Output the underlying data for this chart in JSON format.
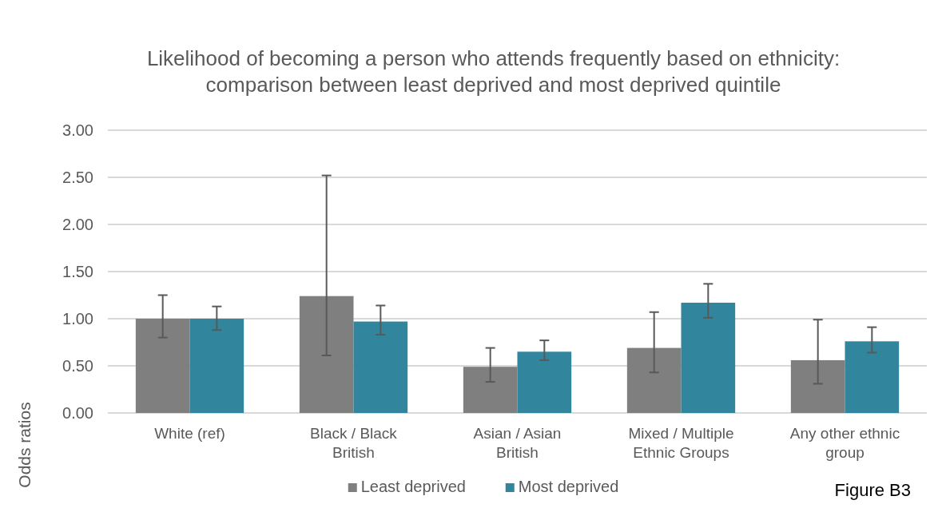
{
  "chart_data": {
    "type": "bar",
    "title": "Likelihood of becoming a person who attends frequently based on ethnicity: comparison between least deprived and most deprived quintile",
    "ylabel": "Odds ratios",
    "categories": [
      "White (ref)",
      "Black / Black British",
      "Asian / Asian British",
      "Mixed / Multiple Ethnic Groups",
      "Any other ethnic group"
    ],
    "series": [
      {
        "name": "Least deprived",
        "color": "#7f7f7f",
        "values": [
          1.0,
          1.24,
          0.49,
          0.69,
          0.56
        ],
        "errors": [
          [
            0.8,
            1.25
          ],
          [
            0.61,
            2.52
          ],
          [
            0.33,
            0.69
          ],
          [
            0.43,
            1.07
          ],
          [
            0.31,
            0.99
          ]
        ]
      },
      {
        "name": "Most deprived",
        "color": "#31859c",
        "values": [
          1.0,
          0.97,
          0.65,
          1.17,
          0.76
        ],
        "errors": [
          [
            0.88,
            1.13
          ],
          [
            0.83,
            1.14
          ],
          [
            0.56,
            0.77
          ],
          [
            1.01,
            1.37
          ],
          [
            0.64,
            0.91
          ]
        ]
      }
    ],
    "ylim": [
      0,
      3
    ],
    "yticks": [
      {
        "value": 0,
        "label": "0.00"
      },
      {
        "value": 0.5,
        "label": "0.50"
      },
      {
        "value": 1,
        "label": "1.00"
      },
      {
        "value": 1.5,
        "label": "1.50"
      },
      {
        "value": 2,
        "label": "2.00"
      },
      {
        "value": 2.5,
        "label": "2.50"
      },
      {
        "value": 3,
        "label": "3.00"
      }
    ],
    "grid": "y",
    "legend": "bottom",
    "annotations": [
      "Figure B3"
    ]
  }
}
